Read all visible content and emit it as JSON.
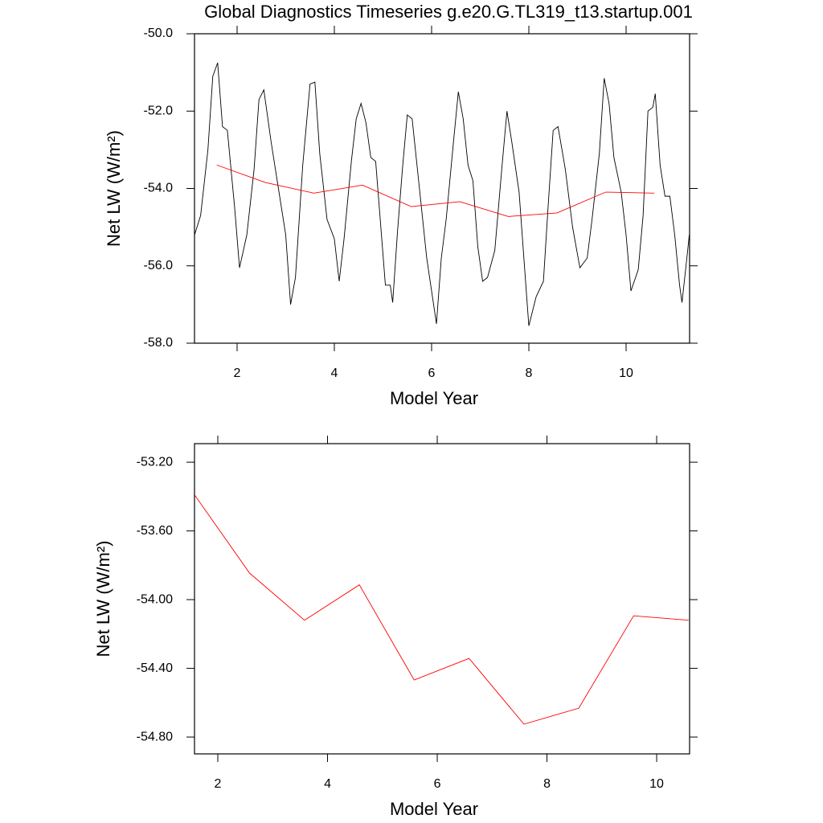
{
  "chart_data": [
    {
      "type": "line",
      "title": "Global Diagnostics Timeseries g.e20.G.TL319_t13.startup.001",
      "xlabel": "Model Year",
      "ylabel": "Net LW (W/m²)",
      "xlim": [
        1.124,
        11.306
      ],
      "xticks": [
        2,
        4,
        6,
        8,
        10
      ],
      "ylim": [
        -58,
        -50
      ],
      "yticks": [
        {
          "value": -58,
          "label": "-58.0"
        },
        {
          "value": -56,
          "label": "-56.0"
        },
        {
          "value": -54,
          "label": "-54.0"
        },
        {
          "value": -52,
          "label": "-52.0"
        },
        {
          "value": -50,
          "label": "-50.0"
        }
      ],
      "series": [
        {
          "color": "#000000",
          "x": [
            1.125,
            1.25,
            1.4,
            1.5,
            1.6,
            1.7,
            1.8,
            1.95,
            2.05,
            2.2,
            2.35,
            2.45,
            2.55,
            2.7,
            2.85,
            3.0,
            3.1,
            3.2,
            3.35,
            3.5,
            3.6,
            3.7,
            3.85,
            4.0,
            4.1,
            4.2,
            4.35,
            4.45,
            4.55,
            4.65,
            4.75,
            4.85,
            5.05,
            5.15,
            5.2,
            5.3,
            5.4,
            5.5,
            5.6,
            5.75,
            5.9,
            6.1,
            6.2,
            6.3,
            6.45,
            6.55,
            6.65,
            6.75,
            6.85,
            6.95,
            7.05,
            7.15,
            7.3,
            7.45,
            7.55,
            7.65,
            7.8,
            7.95,
            8.0,
            8.15,
            8.3,
            8.4,
            8.5,
            8.6,
            8.75,
            8.9,
            9.05,
            9.2,
            9.3,
            9.45,
            9.55,
            9.65,
            9.75,
            9.9,
            10.0,
            10.1,
            10.25,
            10.35,
            10.45,
            10.55,
            10.6,
            10.7,
            10.8,
            10.9,
            11.0,
            11.1,
            11.15,
            11.25,
            11.3
          ],
          "values": [
            -55.2,
            -54.7,
            -53.0,
            -51.1,
            -50.75,
            -52.4,
            -52.5,
            -54.5,
            -56.05,
            -55.2,
            -53.5,
            -51.7,
            -51.45,
            -52.8,
            -54.0,
            -55.2,
            -57.0,
            -56.3,
            -53.4,
            -51.3,
            -51.25,
            -53.1,
            -54.8,
            -55.3,
            -56.4,
            -55.3,
            -53.3,
            -52.2,
            -51.8,
            -52.3,
            -53.2,
            -53.3,
            -56.5,
            -56.5,
            -56.95,
            -55.1,
            -53.5,
            -52.1,
            -52.2,
            -54.0,
            -55.8,
            -57.5,
            -55.8,
            -54.8,
            -52.8,
            -51.5,
            -52.2,
            -53.4,
            -53.8,
            -55.5,
            -56.4,
            -56.3,
            -55.6,
            -53.4,
            -52.0,
            -52.8,
            -54.1,
            -56.7,
            -57.55,
            -56.8,
            -56.4,
            -54.4,
            -52.5,
            -52.4,
            -53.5,
            -55.0,
            -56.05,
            -55.8,
            -54.8,
            -53.1,
            -51.15,
            -51.8,
            -53.2,
            -54.1,
            -55.2,
            -56.65,
            -56.1,
            -54.7,
            -52.0,
            -51.9,
            -51.55,
            -53.4,
            -54.2,
            -54.2,
            -55.2,
            -56.5,
            -56.95,
            -55.8,
            -55.2
          ]
        },
        {
          "color": "#ff0000",
          "x": [
            1.58,
            2.58,
            3.58,
            4.58,
            5.58,
            6.58,
            7.58,
            8.58,
            9.58,
            10.58
          ],
          "values": [
            -53.392,
            -53.846,
            -54.12,
            -53.914,
            -54.468,
            -54.342,
            -54.725,
            -54.632,
            -54.094,
            -54.12
          ]
        }
      ]
    },
    {
      "type": "line",
      "xlabel": "Model Year",
      "ylabel": "Net LW (W/m²)",
      "xlim": [
        1.575,
        10.6
      ],
      "xticks": [
        2,
        4,
        6,
        8,
        10
      ],
      "ylim": [
        -54.898,
        -53.092
      ],
      "yticks": [
        {
          "value": -54.8,
          "label": "-54.80"
        },
        {
          "value": -54.4,
          "label": "-54.40"
        },
        {
          "value": -54.0,
          "label": "-54.00"
        },
        {
          "value": -53.6,
          "label": "-53.60"
        },
        {
          "value": -53.2,
          "label": "-53.20"
        }
      ],
      "series": [
        {
          "color": "#ff0000",
          "x": [
            1.58,
            2.58,
            3.58,
            4.58,
            5.58,
            6.58,
            7.58,
            8.58,
            9.58,
            10.58
          ],
          "values": [
            -53.392,
            -53.846,
            -54.12,
            -53.914,
            -54.468,
            -54.342,
            -54.725,
            -54.632,
            -54.094,
            -54.12
          ]
        }
      ]
    }
  ]
}
